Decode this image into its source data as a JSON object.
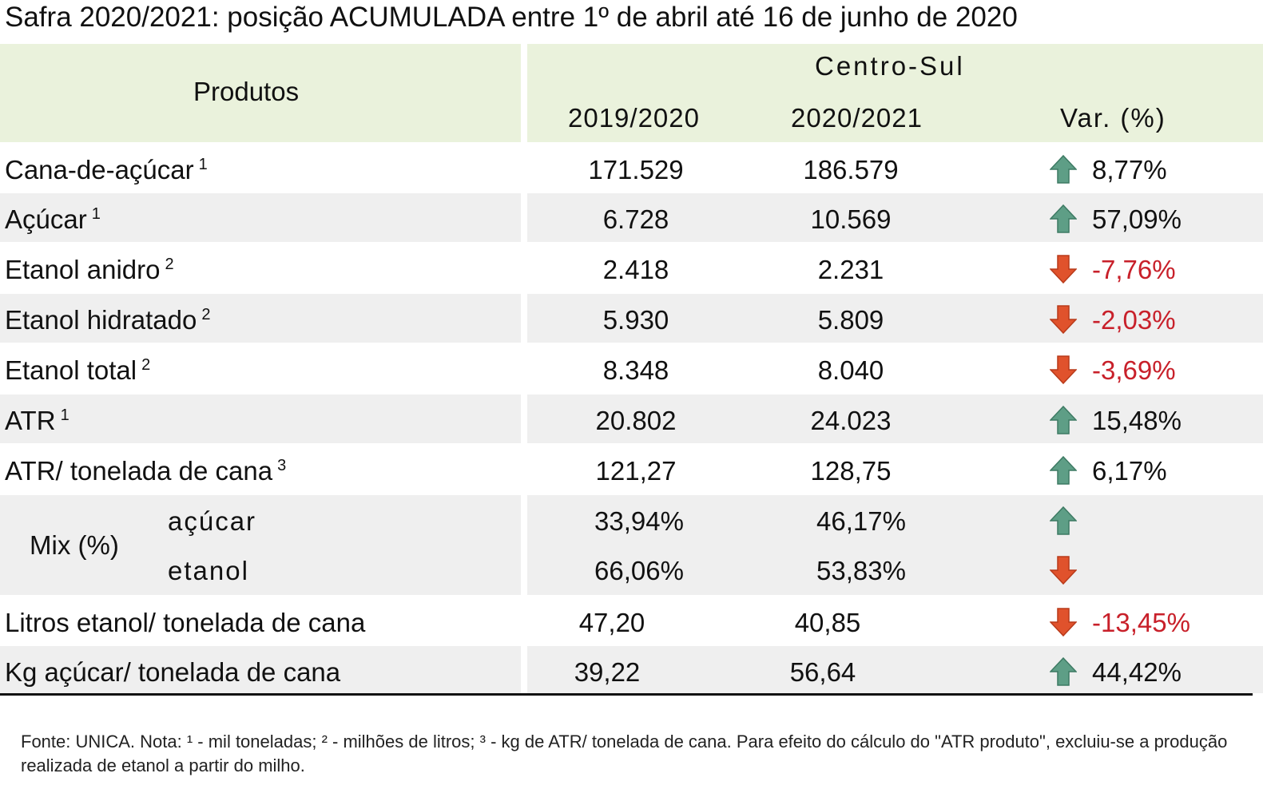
{
  "title": "Safra 2020/2021: posição ACUMULADA entre 1º de abril até 16 de junho de 2020",
  "table": {
    "header": {
      "product": "Produtos",
      "region": "Centro-Sul",
      "columns": [
        "2019/2020",
        "2020/2021",
        "Var. (%)"
      ]
    },
    "rows": [
      {
        "label": "Cana-de-açúcar",
        "note": "1",
        "values": [
          "171.529",
          "186.579",
          "8,77%"
        ]
      },
      {
        "label": "Açúcar",
        "note": "1",
        "values": [
          "6.728",
          "10.569",
          "57,09%"
        ]
      },
      {
        "label": "Etanol anidro",
        "note": "2",
        "values": [
          "2.418",
          "2.231",
          "-7,76%"
        ]
      },
      {
        "label": "Etanol hidratado",
        "note": "2",
        "values": [
          "5.930",
          "5.809",
          "-2,03%"
        ]
      },
      {
        "label": "Etanol total",
        "note": "2",
        "values": [
          "8.348",
          "8.040",
          "-3,69%"
        ]
      },
      {
        "label": "ATR",
        "note": "1",
        "values": [
          "20.802",
          "24.023",
          "15,48%"
        ]
      },
      {
        "label": "ATR/ tonelada de cana",
        "note": "3",
        "values": [
          "121,27",
          "128,75",
          "6,17%"
        ]
      },
      {
        "label": "Mix (%)",
        "parts": [
          {
            "label": "açúcar",
            "values": [
              "33,94%",
              "46,17%"
            ]
          },
          {
            "label": "etanol",
            "values": [
              "66,06%",
              "53,83%"
            ]
          }
        ]
      },
      {
        "label": "Litros etanol/ tonelada de cana",
        "values": [
          "47,20",
          "40,85",
          "-13,45%"
        ]
      },
      {
        "label": "Kg açúcar/ tonelada de cana",
        "values": [
          "39,22",
          "56,64",
          "44,42%"
        ]
      }
    ]
  },
  "footnote": "Fonte: UNICA. Nota: ¹ - mil toneladas; ² - milhões de litros; ³ - kg de ATR/ tonelada de cana. Para efeito do cálculo do \"ATR produto\", excluiu-se a produção realizada de etanol a partir do milho."
}
